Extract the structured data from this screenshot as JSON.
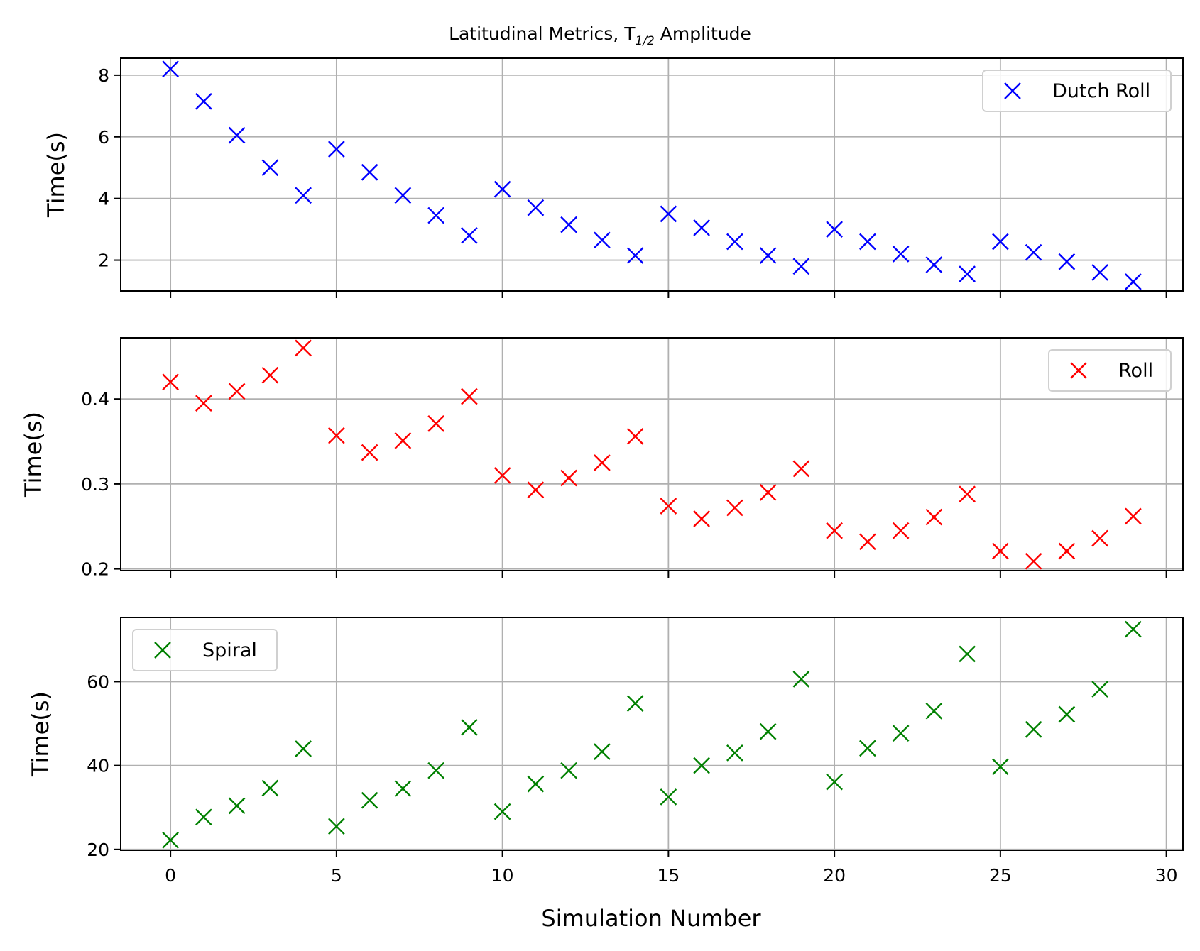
{
  "figure_title": "Latitudinal Metrics, T",
  "figure_title_subscript": "1/2",
  "figure_title_suffix": " Amplitude",
  "xlabel": "Simulation Number",
  "chart_data": [
    {
      "type": "scatter",
      "marker": "x",
      "ylabel": "Time(s)",
      "xlim": [
        -1.5,
        30.5
      ],
      "ylim": [
        1.0,
        8.55
      ],
      "xticks": [
        0,
        5,
        10,
        15,
        20,
        25,
        30
      ],
      "yticks": [
        2,
        4,
        6,
        8
      ],
      "ytick_labels": [
        "2",
        "4",
        "6",
        "8"
      ],
      "grid": true,
      "legend": "upper right",
      "series": [
        {
          "name": "Dutch Roll",
          "color": "#0000ff",
          "x": [
            0,
            1,
            2,
            3,
            4,
            5,
            6,
            7,
            8,
            9,
            10,
            11,
            12,
            13,
            14,
            15,
            16,
            17,
            18,
            19,
            20,
            21,
            22,
            23,
            24,
            25,
            26,
            27,
            28,
            29
          ],
          "y": [
            8.2,
            7.15,
            6.05,
            5.0,
            4.1,
            5.6,
            4.85,
            4.1,
            3.45,
            2.8,
            4.3,
            3.7,
            3.15,
            2.65,
            2.15,
            3.5,
            3.05,
            2.6,
            2.15,
            1.8,
            3.0,
            2.6,
            2.2,
            1.85,
            1.55,
            2.6,
            2.25,
            1.95,
            1.6,
            1.3
          ]
        }
      ]
    },
    {
      "type": "scatter",
      "marker": "x",
      "ylabel": "Time(s)",
      "xlim": [
        -1.5,
        30.5
      ],
      "ylim": [
        0.198,
        0.472
      ],
      "xticks": [
        0,
        5,
        10,
        15,
        20,
        25,
        30
      ],
      "yticks": [
        0.2,
        0.3,
        0.4
      ],
      "ytick_labels": [
        "0.2",
        "0.3",
        "0.4"
      ],
      "grid": true,
      "legend": "upper right",
      "series": [
        {
          "name": "Roll",
          "color": "#ff0000",
          "x": [
            0,
            1,
            2,
            3,
            4,
            5,
            6,
            7,
            8,
            9,
            10,
            11,
            12,
            13,
            14,
            15,
            16,
            17,
            18,
            19,
            20,
            21,
            22,
            23,
            24,
            25,
            26,
            27,
            28,
            29
          ],
          "y": [
            0.42,
            0.395,
            0.409,
            0.428,
            0.46,
            0.357,
            0.337,
            0.351,
            0.371,
            0.403,
            0.31,
            0.293,
            0.307,
            0.325,
            0.356,
            0.274,
            0.259,
            0.272,
            0.29,
            0.318,
            0.245,
            0.232,
            0.245,
            0.261,
            0.288,
            0.221,
            0.209,
            0.221,
            0.236,
            0.262
          ]
        }
      ]
    },
    {
      "type": "scatter",
      "marker": "x",
      "ylabel": "Time(s)",
      "xlim": [
        -1.5,
        30.5
      ],
      "ylim": [
        19.8,
        75.3
      ],
      "xticks": [
        0,
        5,
        10,
        15,
        20,
        25,
        30
      ],
      "xtick_labels": [
        "0",
        "5",
        "10",
        "15",
        "20",
        "25",
        "30"
      ],
      "yticks": [
        20,
        40,
        60
      ],
      "ytick_labels": [
        "20",
        "40",
        "60"
      ],
      "grid": true,
      "legend": "upper left",
      "series": [
        {
          "name": "Spiral",
          "color": "#008000",
          "x": [
            0,
            1,
            2,
            3,
            4,
            5,
            6,
            7,
            8,
            9,
            10,
            11,
            12,
            13,
            14,
            15,
            16,
            17,
            18,
            19,
            20,
            21,
            22,
            23,
            24,
            25,
            26,
            27,
            28,
            29
          ],
          "y": [
            22.2,
            27.7,
            30.4,
            34.6,
            44.0,
            25.5,
            31.7,
            34.5,
            38.8,
            49.1,
            29.0,
            35.6,
            38.8,
            43.3,
            54.8,
            32.5,
            40.0,
            43.0,
            48.1,
            60.6,
            36.1,
            44.1,
            47.7,
            53.0,
            66.6,
            39.7,
            48.6,
            52.2,
            58.2,
            72.5
          ]
        }
      ]
    }
  ]
}
